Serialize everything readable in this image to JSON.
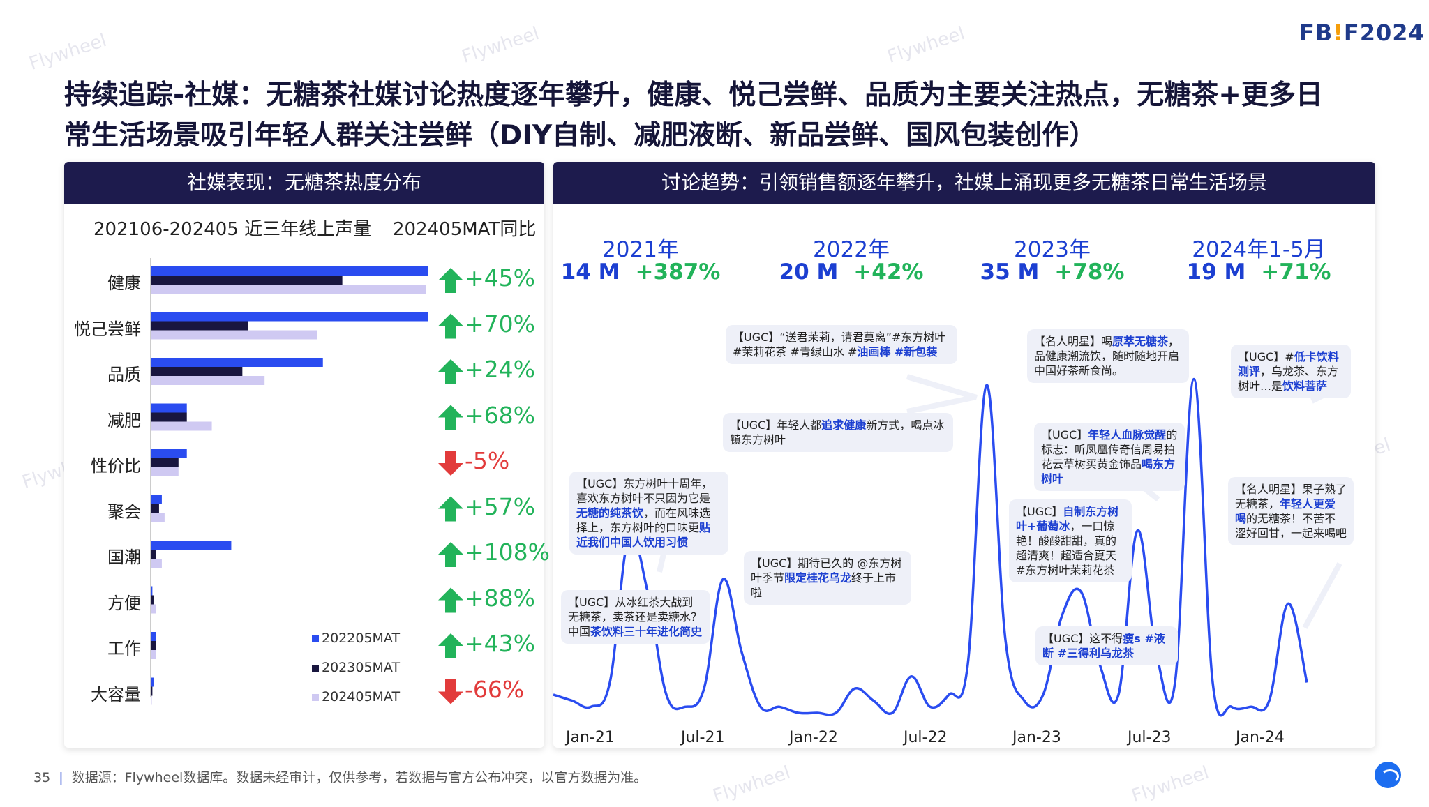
{
  "logo": "FB!F2024",
  "title": [
    "持续追踪-社媒：无糖茶社媒讨论热度逐年攀升，健康、悦己尝鲜、品质为主要关注热点，无糖茶+更多日",
    "常生活场景吸引年轻人群关注尝鲜（DIY自制、减肥液断、新品尝鲜、国风包装创作）"
  ],
  "left_panel": {
    "header": "社媒表现：无糖茶热度分布",
    "subtitle_left": "202106-202405 近三年线上声量",
    "subtitle_right": "202405MAT同比"
  },
  "right_panel": {
    "header": "讨论趋势：引领销售额逐年攀升，社媒上涌现更多无糖茶日常生活场景",
    "years": [
      {
        "label": "2021年",
        "volume": "14 M",
        "growth": "+387%"
      },
      {
        "label": "2022年",
        "volume": "20 M",
        "growth": "+42%"
      },
      {
        "label": "2023年",
        "volume": "35 M",
        "growth": "+78%"
      },
      {
        "label": "2024年1-5月",
        "volume": "19 M",
        "growth": "+71%"
      }
    ],
    "annotations": [
      {
        "pre": "【UGC】“送君茉莉，请君莫离”#东方树叶 #茉莉花茶 #青绿山水 #",
        "hl": "油画棒 #新包装",
        "post": ""
      },
      {
        "pre": "【UGC】年轻人都",
        "hl": "追求健康",
        "post": "新方式，喝点冰镇东方树叶"
      },
      {
        "pre": "【UGC】东方树叶十周年，喜欢东方树叶不只因为它是",
        "hl": "无糖的纯茶饮",
        "post": "，而在风味选择上，东方树叶的口味更",
        "hl2": "贴近我们中国人饮用习惯"
      },
      {
        "pre": "【UGC】期待已久的 @东方树叶季节",
        "hl": "限定桂花乌龙",
        "post": "终于上市啦"
      },
      {
        "pre": "【UGC】从冰红茶大战到无糖茶，卖茶还是卖糖水？中国",
        "hl": "茶饮料三十年进化简史",
        "post": ""
      },
      {
        "pre": "【名人明星】喝",
        "hl": "原萃无糖茶",
        "post": "，品健康潮流饮，随时随地开启中国好茶新食尚。"
      },
      {
        "pre": "【UGC】",
        "hl": "年轻人血脉觉醒",
        "post": "的标志：听凤凰传奇信周易拍花云草树买黄金饰品",
        "hl2": "喝东方树叶"
      },
      {
        "pre": "【UGC】",
        "hl": "自制东方树叶+葡萄冰",
        "post": "，一口惊艳！酸酸甜甜，真的超清爽！超适合夏天 #东方树叶茉莉花茶"
      },
      {
        "pre": "【UGC】这不得",
        "hl": "瘦s #液断 #三得利乌龙茶",
        "post": ""
      },
      {
        "pre": "【UGC】#",
        "hl": "低卡饮料测评",
        "post": "，乌龙茶、东方树叶…是",
        "hl2": "饮料菩萨"
      },
      {
        "pre": "【名人明星】果子熟了无糖茶，",
        "hl": "年轻人更爱喝",
        "post": "的无糖茶！不苦不涩好回甘，一起来喝吧"
      }
    ]
  },
  "footer": {
    "page": "35",
    "source": "数据源：Flywheel数据库。数据未经审计，仅供参考，若数据与官方公布冲突，以官方数据为准。"
  },
  "watermark": "Flywheel",
  "chart_data": [
    {
      "type": "bar",
      "orientation": "horizontal",
      "categories": [
        "健康",
        "悦己尝鲜",
        "品质",
        "减肥",
        "性价比",
        "聚会",
        "国潮",
        "方便",
        "工作",
        "大容量"
      ],
      "series": [
        {
          "name": "202205MAT",
          "color": "#2a4cf0",
          "values": [
            100,
            100,
            62,
            13,
            13,
            4,
            29,
            0.6,
            2,
            1
          ]
        },
        {
          "name": "202305MAT",
          "color": "#19163f",
          "values": [
            69,
            35,
            33,
            13,
            10,
            3,
            2,
            1,
            2,
            0.6
          ]
        },
        {
          "name": "202405MAT",
          "color": "#cfc9f2",
          "values": [
            99,
            60,
            41,
            22,
            10,
            5,
            4,
            2,
            2,
            0.2
          ]
        }
      ],
      "yoy": [
        "+45%",
        "+70%",
        "+24%",
        "+68%",
        "-5%",
        "+57%",
        "+108%",
        "+88%",
        "+43%",
        "-66%"
      ],
      "grid": false,
      "legend": "bottom-right"
    },
    {
      "type": "line",
      "x_ticks": [
        "Jan-21",
        "Jul-21",
        "Jan-22",
        "Jul-22",
        "Jan-23",
        "Jul-23",
        "Jan-24"
      ],
      "x": [
        "2021-01",
        "2021-02",
        "2021-03",
        "2021-04",
        "2021-05",
        "2021-06",
        "2021-07",
        "2021-08",
        "2021-09",
        "2021-10",
        "2021-11",
        "2021-12",
        "2022-01",
        "2022-02",
        "2022-03",
        "2022-04",
        "2022-05",
        "2022-06",
        "2022-07",
        "2022-08",
        "2022-09",
        "2022-10",
        "2022-11",
        "2022-12",
        "2023-01",
        "2023-02",
        "2023-03",
        "2023-04",
        "2023-05",
        "2023-06",
        "2023-07",
        "2023-08",
        "2023-09",
        "2023-10",
        "2023-11",
        "2023-12",
        "2024-01",
        "2024-02",
        "2024-03",
        "2024-04",
        "2024-05"
      ],
      "values": [
        0.3,
        0.2,
        0.1,
        0.5,
        2.9,
        2.0,
        0.3,
        0.1,
        0.4,
        2.2,
        1.0,
        0.1,
        0.1,
        0.0,
        0.0,
        0.0,
        0.4,
        0.2,
        0.0,
        0.6,
        0.1,
        0.3,
        0.8,
        5.4,
        1.2,
        0.2,
        0.3,
        1.6,
        2.0,
        0.8,
        0.3,
        3.0,
        1.0,
        0.5,
        5.5,
        0.5,
        0.1,
        0.1,
        0.2,
        1.8,
        0.5
      ],
      "grid": false,
      "line_color": "#2a4cf0"
    }
  ]
}
